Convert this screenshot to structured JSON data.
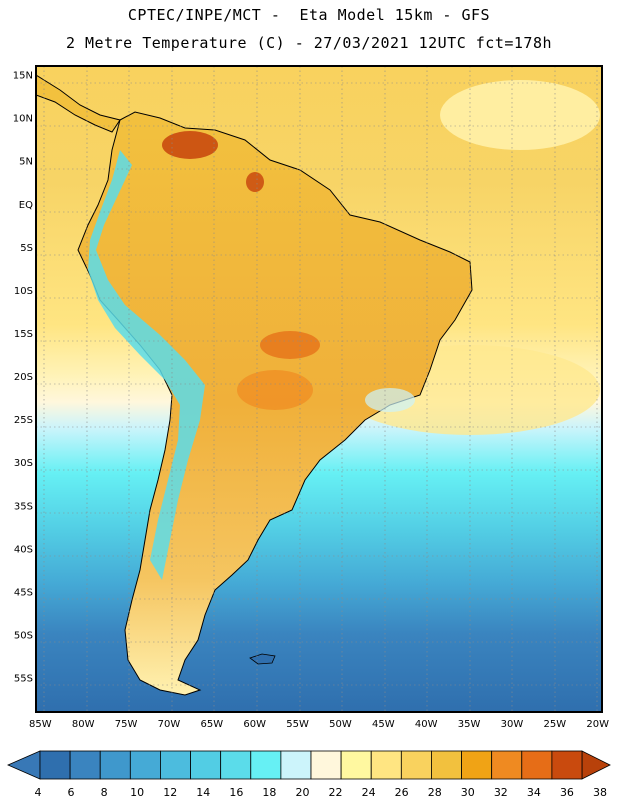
{
  "header": {
    "line1": "CPTEC/INPE/MCT -  Eta Model 15km - GFS",
    "line2": "2 Metre Temperature (C) - 27/03/2021 12UTC fct=178h"
  },
  "map": {
    "lat_labels": [
      "15N",
      "10N",
      "5N",
      "EQ",
      "5S",
      "10S",
      "15S",
      "20S",
      "25S",
      "30S",
      "35S",
      "40S",
      "45S",
      "50S",
      "55S"
    ],
    "lon_labels": [
      "85W",
      "80W",
      "75W",
      "70W",
      "65W",
      "60W",
      "55W",
      "50W",
      "45W",
      "40W",
      "35W",
      "30W",
      "25W",
      "20W"
    ],
    "lat_range": [
      16,
      -59
    ],
    "lon_range": [
      -85.5,
      -19.5
    ]
  },
  "colorbar": {
    "ticks": [
      "4",
      "6",
      "8",
      "10",
      "12",
      "14",
      "16",
      "18",
      "20",
      "22",
      "24",
      "26",
      "28",
      "30",
      "32",
      "34",
      "36",
      "38"
    ],
    "colors": [
      "#2f6fae",
      "#3a84bf",
      "#3f98cc",
      "#45aad6",
      "#4cbcde",
      "#52cde4",
      "#5bdcea",
      "#66f0f4",
      "#ccf4fb",
      "#fff7dc",
      "#fff8a0",
      "#ffe582",
      "#f9d25e",
      "#f2c13e",
      "#f0a315",
      "#ef8a21",
      "#e66d17",
      "#c94a0e"
    ],
    "end_low": "#3878b6",
    "end_high": "#b8410a"
  }
}
